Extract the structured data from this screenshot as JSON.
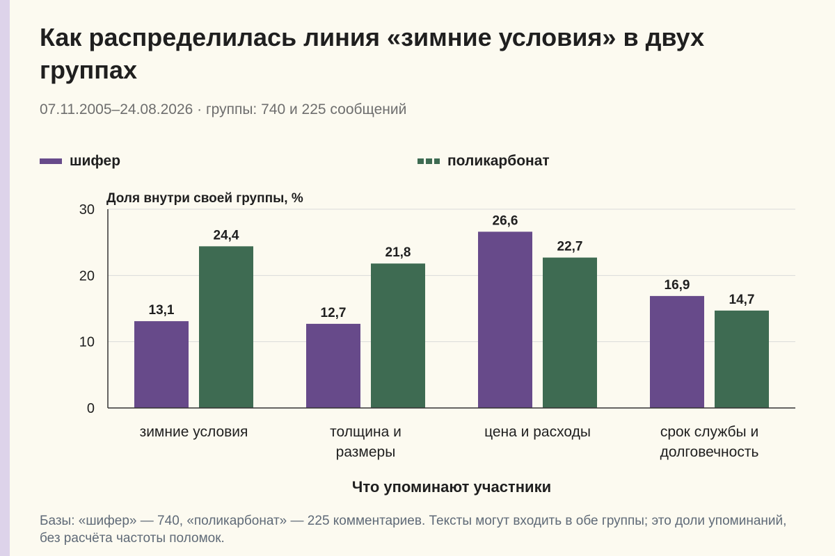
{
  "chart_data": {
    "type": "bar",
    "title": "Как распределилась линия «зимние условия» в двух группах",
    "subtitle": "07.11.2005–24.08.2026 · группы: 740 и 225 сообщений",
    "ylabel": "Доля внутри своей группы, %",
    "xlabel": "Что упоминают участники",
    "ylim": [
      0,
      30
    ],
    "yticks": [
      0,
      10,
      20,
      30
    ],
    "grid": true,
    "legend_position": "top-left",
    "categories": [
      [
        "зимние условия"
      ],
      [
        "толщина и",
        "размеры"
      ],
      [
        "цена и расходы"
      ],
      [
        "срок службы и",
        "долговечность"
      ]
    ],
    "series": [
      {
        "name": "шифер",
        "color": "#674a8a",
        "values": [
          13.1,
          12.7,
          26.6,
          16.9
        ],
        "labels": [
          "13,1",
          "12,7",
          "26,6",
          "16,9"
        ]
      },
      {
        "name": "поликарбонат",
        "color": "#3e6b52",
        "values": [
          24.4,
          21.8,
          22.7,
          14.7
        ],
        "labels": [
          "24,4",
          "21,8",
          "22,7",
          "14,7"
        ]
      }
    ],
    "footnote": "Базы: «шифер» — 740, «поликарбонат» — 225 комментариев. Тексты могут входить в обе группы; это доли упоминаний, без расчёта частоты поломок."
  }
}
